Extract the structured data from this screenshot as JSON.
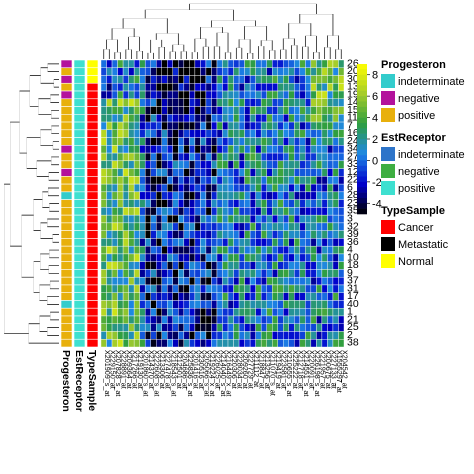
{
  "chart_data": {
    "type": "heatmap",
    "title": "",
    "xlabel": "",
    "ylabel": "",
    "row_labels": [
      "26",
      "20",
      "30",
      "13",
      "19",
      "14",
      "15",
      "11",
      "7",
      "16",
      "24",
      "34",
      "27",
      "33",
      "12",
      "22",
      "6",
      "28",
      "23",
      "35",
      "3",
      "32",
      "39",
      "36",
      "4",
      "10",
      "18",
      "9",
      "37",
      "31",
      "17",
      "40",
      "1",
      "21",
      "25",
      "2",
      "38"
    ],
    "column_labels": [
      "X201909_s_at",
      "X229150_at",
      "X207828_s_at",
      "X228891_at",
      "X209364_at",
      "X217266_at",
      "X219130_at",
      "X201860_s_at",
      "X214370_at",
      "X222608_s_at",
      "X213306_at",
      "X227478_at",
      "X218543_s_at",
      "X212501_at",
      "X204686_at",
      "X225836_s_at",
      "X201416_at",
      "X230516_at",
      "X205066_s_at",
      "X219224_x_at",
      "X226025_at",
      "X214040_s_at",
      "X216449_x_at",
      "X220306_at",
      "X228034_at",
      "X209260_at",
      "X227729_at",
      "X211112_at",
      "X218847_at",
      "X213256_at",
      "X211070_s_at",
      "X219419_at",
      "X223581_at",
      "X210655_s_at",
      "X225222_at",
      "X212718_at",
      "X214551_s_at",
      "X220091_at",
      "X226198_s_at",
      "X221957_at",
      "X200675_at",
      "X227133_at",
      "X1555297_at",
      "X204542_at"
    ],
    "color_scale": {
      "ticks": [
        "8",
        "6",
        "4",
        "2",
        "0",
        "-2",
        "-4"
      ],
      "tick_values": [
        8,
        6,
        4,
        2,
        0,
        -2,
        -4
      ],
      "range": [
        -5,
        9
      ],
      "colors": [
        "#000000",
        "#0000cc",
        "#1e88e5",
        "#2e9e40",
        "#a4cc2a",
        "#ffff00"
      ]
    },
    "annotation_tracks": [
      "Progesteron",
      "EstReceptor",
      "TypeSample"
    ],
    "row_annotations": {
      "Progesteron": [
        "magenta",
        "yellow",
        "magenta",
        "yellow",
        "magenta",
        "yellow",
        "yellow",
        "yellow",
        "yellow",
        "yellow",
        "yellow",
        "magenta",
        "yellow",
        "yellow",
        "magenta",
        "yellow",
        "yellow",
        "cyan",
        "yellow",
        "yellow",
        "yellow",
        "yellow",
        "yellow",
        "yellow",
        "yellow",
        "yellow",
        "yellow",
        "yellow",
        "yellow",
        "yellow",
        "yellow",
        "cyan",
        "yellow",
        "yellow",
        "yellow",
        "yellow",
        "yellow"
      ],
      "EstReceptor": [
        "cyan",
        "cyan",
        "cyan",
        "cyan",
        "cyan",
        "cyan",
        "cyan",
        "cyan",
        "cyan",
        "cyan",
        "cyan",
        "cyan",
        "cyan",
        "cyan",
        "cyan",
        "cyan",
        "cyan",
        "cyan",
        "cyan",
        "cyan",
        "cyan",
        "cyan",
        "cyan",
        "cyan",
        "cyan",
        "cyan",
        "cyan",
        "cyan",
        "cyan",
        "cyan",
        "cyan",
        "cyan",
        "cyan",
        "cyan",
        "cyan",
        "cyan",
        "cyan"
      ],
      "TypeSample": [
        "yellow",
        "yellow",
        "yellow",
        "red",
        "red",
        "red",
        "red",
        "red",
        "red",
        "red",
        "red",
        "red",
        "red",
        "red",
        "red",
        "red",
        "red",
        "red",
        "red",
        "red",
        "red",
        "red",
        "red",
        "red",
        "red",
        "red",
        "red",
        "red",
        "red",
        "red",
        "red",
        "red",
        "red",
        "red",
        "red",
        "red",
        "red"
      ]
    },
    "legend": [
      {
        "title": "Progesteron",
        "entries": [
          {
            "label": "indeterminate",
            "color": "#33cccc"
          },
          {
            "label": "negative",
            "color": "#b3129c"
          },
          {
            "label": "positive",
            "color": "#e8b00c"
          }
        ]
      },
      {
        "title": "EstReceptor",
        "entries": [
          {
            "label": "indeterminate",
            "color": "#2d74c9"
          },
          {
            "label": "negative",
            "color": "#3eae41"
          },
          {
            "label": "positive",
            "color": "#3ee0d0"
          }
        ]
      },
      {
        "title": "TypeSample",
        "entries": [
          {
            "label": "Cancer",
            "color": "#ff0000"
          },
          {
            "label": "Metastatic",
            "color": "#000000"
          },
          {
            "label": "Normal",
            "color": "#ffff00"
          }
        ]
      }
    ],
    "legend_position": "right",
    "grid": true
  }
}
